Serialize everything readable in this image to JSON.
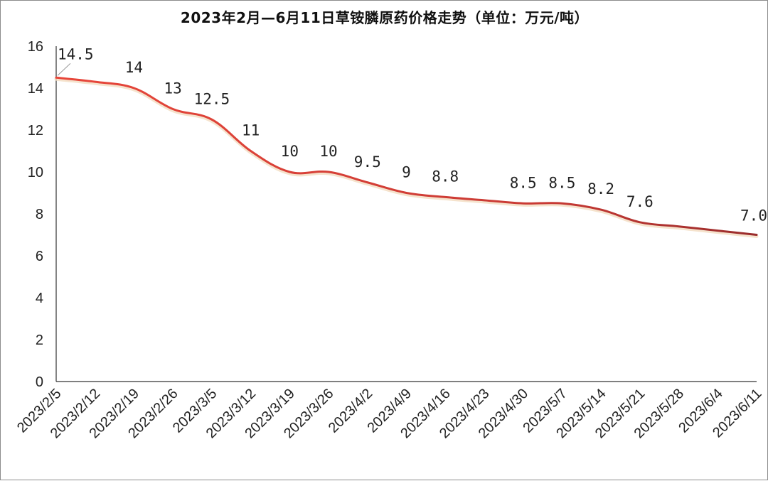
{
  "chart_data": {
    "type": "line",
    "title": "2023年2月—6月11日草铵膦原药价格走势（单位：万元/吨）",
    "xlabel": "",
    "ylabel": "",
    "ylim": [
      0,
      16
    ],
    "yticks": [
      0,
      2,
      4,
      6,
      8,
      10,
      12,
      14,
      16
    ],
    "grid": false,
    "legend": "none",
    "line_color_start": "#e8463a",
    "line_color_end": "#9a2c2c",
    "categories": [
      "2023/2/5",
      "2023/2/12",
      "2023/2/19",
      "2023/2/26",
      "2023/3/5",
      "2023/3/12",
      "2023/3/19",
      "2023/3/26",
      "2023/4/2",
      "2023/4/9",
      "2023/4/16",
      "2023/4/23",
      "2023/4/30",
      "2023/5/7",
      "2023/5/14",
      "2023/5/21",
      "2023/5/28",
      "2023/6/4",
      "2023/6/11"
    ],
    "values": [
      14.5,
      14.3,
      14,
      13,
      12.5,
      11,
      10,
      10,
      9.5,
      9,
      8.8,
      8.65,
      8.5,
      8.5,
      8.2,
      7.6,
      7.4,
      7.2,
      7.0
    ],
    "data_labels": [
      "14.5",
      "",
      "14",
      "13",
      "12.5",
      "11",
      "10",
      "10",
      "9.5",
      "9",
      "8.8",
      "",
      "8.5",
      "8.5",
      "8.2",
      "7.6",
      "",
      "",
      "7.0"
    ]
  }
}
